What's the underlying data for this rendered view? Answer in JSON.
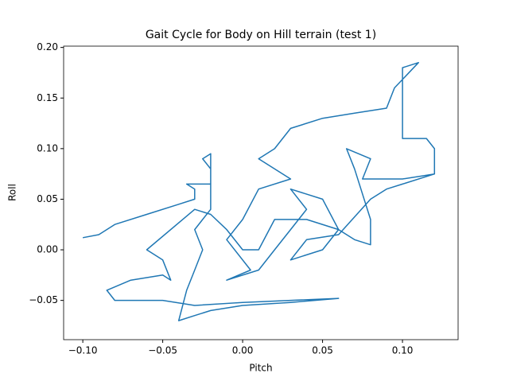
{
  "chart_data": {
    "type": "line",
    "title": "Gait Cycle for Body on Hill terrain (test 1)",
    "xlabel": "Pitch",
    "ylabel": "Roll",
    "color": "#1f77b4",
    "xlim": [
      -0.112,
      0.1348
    ],
    "ylim": [
      -0.0888,
      0.2013
    ],
    "xticks": [
      {
        "value": -0.1,
        "label": "−0.10"
      },
      {
        "value": -0.05,
        "label": "−0.05"
      },
      {
        "value": 0,
        "label": "0.00"
      },
      {
        "value": 0.05,
        "label": "0.05"
      },
      {
        "value": 0.1,
        "label": "0.10"
      }
    ],
    "yticks": [
      {
        "value": -0.05,
        "label": "−0.05"
      },
      {
        "value": 0,
        "label": "0.00"
      },
      {
        "value": 0.05,
        "label": "0.05"
      },
      {
        "value": 0.1,
        "label": "0.10"
      },
      {
        "value": 0.15,
        "label": "0.15"
      },
      {
        "value": 0.2,
        "label": "0.20"
      }
    ],
    "x": [
      -0.1,
      -0.09,
      -0.08,
      -0.06,
      -0.04,
      -0.03,
      -0.03,
      -0.035,
      -0.02,
      -0.02,
      -0.025,
      -0.02,
      -0.02,
      -0.02,
      -0.02,
      -0.025,
      -0.03,
      -0.025,
      -0.03,
      -0.035,
      -0.04,
      -0.03,
      -0.02,
      0.0,
      0.03,
      0.06,
      0.03,
      0.0,
      -0.03,
      -0.05,
      -0.08,
      -0.085,
      -0.07,
      -0.05,
      -0.045,
      -0.05,
      -0.06,
      -0.03,
      -0.02,
      -0.01,
      0.0,
      0.01,
      0.02,
      0.04,
      0.06,
      0.07,
      0.08,
      0.08,
      0.07,
      0.065,
      0.08,
      0.075,
      0.1,
      0.12,
      0.12,
      0.115,
      0.1,
      0.1,
      0.1,
      0.1,
      0.11,
      0.095,
      0.09,
      0.07,
      0.05,
      0.03,
      0.02,
      0.01,
      0.03,
      0.01,
      0.0,
      -0.01,
      0.005,
      -0.01,
      0.01,
      0.02,
      0.03,
      0.04,
      0.03,
      0.05,
      0.06,
      0.05,
      0.03,
      0.04,
      0.06,
      0.08,
      0.09,
      0.1,
      0.12
    ],
    "values": [
      0.012,
      0.015,
      0.025,
      0.035,
      0.045,
      0.05,
      0.06,
      0.065,
      0.065,
      0.08,
      0.09,
      0.095,
      0.075,
      0.06,
      0.04,
      0.03,
      0.02,
      0.0,
      -0.02,
      -0.04,
      -0.07,
      -0.065,
      -0.06,
      -0.055,
      -0.052,
      -0.048,
      -0.05,
      -0.052,
      -0.055,
      -0.05,
      -0.05,
      -0.04,
      -0.03,
      -0.025,
      -0.03,
      -0.01,
      0.0,
      0.04,
      0.035,
      0.02,
      0.0,
      0.0,
      0.03,
      0.03,
      0.02,
      0.01,
      0.005,
      0.03,
      0.08,
      0.1,
      0.09,
      0.07,
      0.07,
      0.075,
      0.1,
      0.11,
      0.11,
      0.12,
      0.15,
      0.18,
      0.185,
      0.16,
      0.14,
      0.135,
      0.13,
      0.12,
      0.1,
      0.09,
      0.07,
      0.06,
      0.03,
      0.01,
      -0.02,
      -0.03,
      -0.02,
      0.0,
      0.02,
      0.04,
      0.06,
      0.05,
      0.02,
      0.0,
      -0.01,
      0.01,
      0.015,
      0.05,
      0.06,
      0.065,
      0.075
    ]
  }
}
